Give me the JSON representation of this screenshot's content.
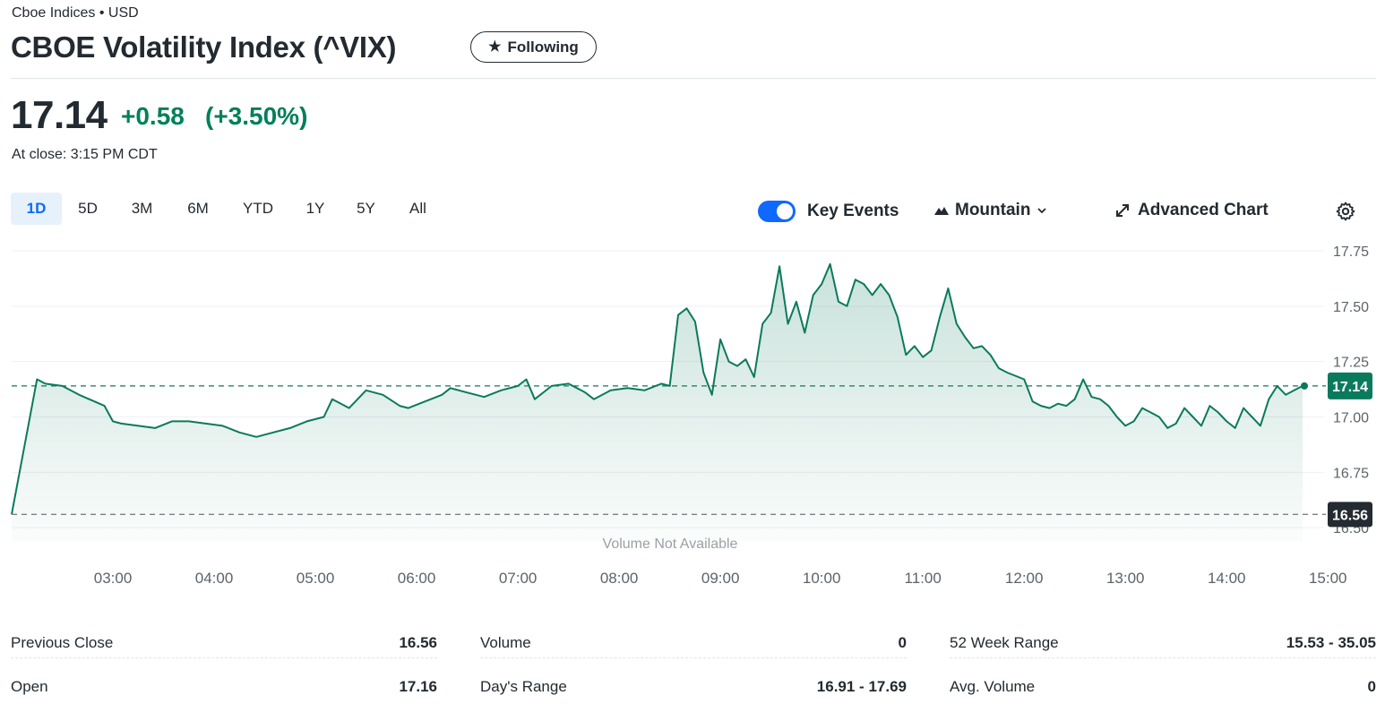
{
  "header": {
    "exchange": "Cboe Indices • USD",
    "title": "CBOE Volatility Index (^VIX)",
    "follow_label": "Following"
  },
  "quote": {
    "price": "17.14",
    "change": "+0.58",
    "change_pct": "(+3.50%)",
    "at_close": "At close: 3:15 PM CDT"
  },
  "ranges": [
    {
      "label": "1D",
      "active": true
    },
    {
      "label": "5D"
    },
    {
      "label": "3M"
    },
    {
      "label": "6M"
    },
    {
      "label": "YTD"
    },
    {
      "label": "1Y"
    },
    {
      "label": "5Y"
    },
    {
      "label": "All"
    }
  ],
  "controls": {
    "key_events_label": "Key Events",
    "key_events_on": true,
    "chart_type_label": "Mountain",
    "advanced_chart_label": "Advanced Chart"
  },
  "colors": {
    "up": "#008059",
    "accent": "#0f69ff",
    "line": "#0b7a5c",
    "prev_close_tag": "#232a31"
  },
  "chart_data": {
    "type": "area",
    "y_ticks": [
      "17.75",
      "17.50",
      "17.25",
      "17.00",
      "16.75",
      "16.50"
    ],
    "x_ticks": [
      "03:00",
      "04:00",
      "05:00",
      "06:00",
      "07:00",
      "08:00",
      "09:00",
      "10:00",
      "11:00",
      "12:00",
      "13:00",
      "14:00",
      "15:00"
    ],
    "ylim": [
      16.44,
      17.75
    ],
    "current_price_label": "17.14",
    "prev_close_label": "16.56",
    "current_price": 17.14,
    "prev_close": 16.56,
    "volume_note": "Volume Not Available",
    "grid": true,
    "series": [
      {
        "points": [
          [
            "02:00",
            16.56
          ],
          [
            "02:15",
            17.17
          ],
          [
            "02:20",
            17.15
          ],
          [
            "02:30",
            17.14
          ],
          [
            "02:40",
            17.1
          ],
          [
            "02:55",
            17.05
          ],
          [
            "03:00",
            16.98
          ],
          [
            "03:05",
            16.97
          ],
          [
            "03:15",
            16.96
          ],
          [
            "03:25",
            16.95
          ],
          [
            "03:35",
            16.98
          ],
          [
            "03:45",
            16.98
          ],
          [
            "03:55",
            16.97
          ],
          [
            "04:05",
            16.96
          ],
          [
            "04:15",
            16.93
          ],
          [
            "04:25",
            16.91
          ],
          [
            "04:35",
            16.93
          ],
          [
            "04:45",
            16.95
          ],
          [
            "04:55",
            16.98
          ],
          [
            "05:05",
            17.0
          ],
          [
            "05:10",
            17.08
          ],
          [
            "05:20",
            17.04
          ],
          [
            "05:30",
            17.12
          ],
          [
            "05:40",
            17.1
          ],
          [
            "05:50",
            17.05
          ],
          [
            "05:55",
            17.04
          ],
          [
            "06:05",
            17.07
          ],
          [
            "06:15",
            17.1
          ],
          [
            "06:20",
            17.13
          ],
          [
            "06:30",
            17.11
          ],
          [
            "06:40",
            17.09
          ],
          [
            "06:50",
            17.12
          ],
          [
            "07:00",
            17.14
          ],
          [
            "07:05",
            17.17
          ],
          [
            "07:10",
            17.08
          ],
          [
            "07:20",
            17.14
          ],
          [
            "07:30",
            17.15
          ],
          [
            "07:40",
            17.11
          ],
          [
            "07:45",
            17.08
          ],
          [
            "07:55",
            17.12
          ],
          [
            "08:05",
            17.13
          ],
          [
            "08:15",
            17.12
          ],
          [
            "08:25",
            17.15
          ],
          [
            "08:30",
            17.14
          ],
          [
            "08:35",
            17.46
          ],
          [
            "08:40",
            17.49
          ],
          [
            "08:45",
            17.43
          ],
          [
            "08:50",
            17.2
          ],
          [
            "08:55",
            17.1
          ],
          [
            "09:00",
            17.35
          ],
          [
            "09:05",
            17.25
          ],
          [
            "09:10",
            17.23
          ],
          [
            "09:15",
            17.26
          ],
          [
            "09:20",
            17.18
          ],
          [
            "09:25",
            17.42
          ],
          [
            "09:30",
            17.47
          ],
          [
            "09:35",
            17.68
          ],
          [
            "09:40",
            17.42
          ],
          [
            "09:45",
            17.52
          ],
          [
            "09:50",
            17.38
          ],
          [
            "09:55",
            17.55
          ],
          [
            "10:00",
            17.6
          ],
          [
            "10:05",
            17.69
          ],
          [
            "10:10",
            17.52
          ],
          [
            "10:15",
            17.5
          ],
          [
            "10:20",
            17.62
          ],
          [
            "10:25",
            17.6
          ],
          [
            "10:30",
            17.55
          ],
          [
            "10:35",
            17.6
          ],
          [
            "10:40",
            17.55
          ],
          [
            "10:45",
            17.45
          ],
          [
            "10:50",
            17.28
          ],
          [
            "10:55",
            17.32
          ],
          [
            "11:00",
            17.27
          ],
          [
            "11:05",
            17.3
          ],
          [
            "11:10",
            17.45
          ],
          [
            "11:15",
            17.58
          ],
          [
            "11:20",
            17.42
          ],
          [
            "11:25",
            17.36
          ],
          [
            "11:30",
            17.31
          ],
          [
            "11:35",
            17.32
          ],
          [
            "11:40",
            17.28
          ],
          [
            "11:45",
            17.22
          ],
          [
            "11:50",
            17.2
          ],
          [
            "12:00",
            17.17
          ],
          [
            "12:05",
            17.07
          ],
          [
            "12:10",
            17.05
          ],
          [
            "12:15",
            17.04
          ],
          [
            "12:20",
            17.06
          ],
          [
            "12:25",
            17.05
          ],
          [
            "12:30",
            17.08
          ],
          [
            "12:35",
            17.17
          ],
          [
            "12:40",
            17.09
          ],
          [
            "12:45",
            17.08
          ],
          [
            "12:50",
            17.05
          ],
          [
            "12:55",
            17.0
          ],
          [
            "13:00",
            16.96
          ],
          [
            "13:05",
            16.98
          ],
          [
            "13:10",
            17.04
          ],
          [
            "13:15",
            17.02
          ],
          [
            "13:20",
            17.0
          ],
          [
            "13:25",
            16.95
          ],
          [
            "13:30",
            16.97
          ],
          [
            "13:35",
            17.04
          ],
          [
            "13:40",
            17.0
          ],
          [
            "13:45",
            16.96
          ],
          [
            "13:50",
            17.05
          ],
          [
            "13:55",
            17.02
          ],
          [
            "14:00",
            16.98
          ],
          [
            "14:05",
            16.95
          ],
          [
            "14:10",
            17.04
          ],
          [
            "14:15",
            17.0
          ],
          [
            "14:20",
            16.96
          ],
          [
            "14:25",
            17.08
          ],
          [
            "14:30",
            17.14
          ],
          [
            "14:35",
            17.1
          ],
          [
            "14:40",
            17.12
          ],
          [
            "14:45",
            17.14
          ]
        ]
      }
    ]
  },
  "stats": [
    [
      {
        "label": "Previous Close",
        "value": "16.56"
      },
      {
        "label": "Open",
        "value": "17.16"
      }
    ],
    [
      {
        "label": "Volume",
        "value": "0"
      },
      {
        "label": "Day's Range",
        "value": "16.91 - 17.69"
      }
    ],
    [
      {
        "label": "52 Week Range",
        "value": "15.53 - 35.05"
      },
      {
        "label": "Avg. Volume",
        "value": "0"
      }
    ]
  ]
}
